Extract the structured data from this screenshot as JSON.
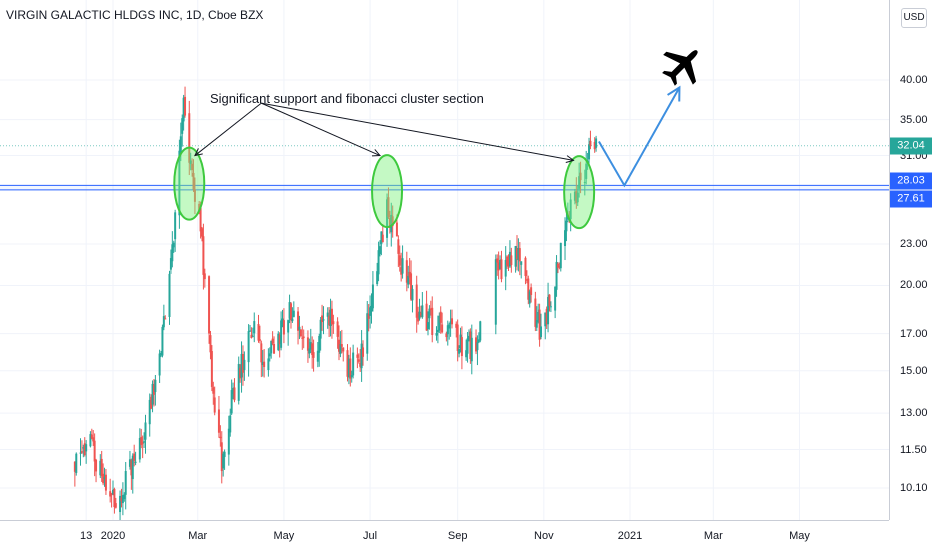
{
  "header": {
    "title": "VIRGIN GALACTIC HLDGS INC, 1D, Cboe BZX",
    "currency": "USD"
  },
  "colors": {
    "up": "#26a69a",
    "down": "#ef5350",
    "zone": "#2962ff",
    "circle_fill": "#7cf27c",
    "circle_stroke": "#3ec93e",
    "projection": "#3d8fe0",
    "price_badge": "#26a69a",
    "level_badge": "#2962ff"
  },
  "annotation": {
    "text": "Significant support and fibonacci cluster section"
  },
  "chart_data": {
    "type": "candlestick",
    "title": "VIRGIN GALACTIC HLDGS INC, 1D, Cboe BZX",
    "scale": "log",
    "ylim": [
      9.2,
      45
    ],
    "y_ticks": [
      "40.00",
      "35.00",
      "31.00",
      "23.00",
      "20.00",
      "17.00",
      "15.00",
      "13.00",
      "11.50",
      "10.10"
    ],
    "x_ticks": [
      "13",
      "2020",
      "Mar",
      "May",
      "Jul",
      "Sep",
      "Nov",
      "2021",
      "Mar",
      "May"
    ],
    "price_labels": [
      {
        "label": "32.04",
        "value": 32.04,
        "kind": "last"
      },
      {
        "label": "28.03",
        "value": 28.03,
        "kind": "level"
      },
      {
        "label": "27.61",
        "value": 27.61,
        "kind": "level"
      }
    ],
    "support_zone": [
      27.61,
      28.03
    ],
    "anchors": [
      {
        "x": "2019-12-05",
        "y": 10.9
      },
      {
        "x": "2019-12-16",
        "y": 11.6
      },
      {
        "x": "2020-01-02",
        "y": 9.6
      },
      {
        "x": "2020-01-20",
        "y": 11.5
      },
      {
        "x": "2020-02-03",
        "y": 15.5
      },
      {
        "x": "2020-02-12",
        "y": 22.5
      },
      {
        "x": "2020-02-20",
        "y": 37.0
      },
      {
        "x": "2020-02-25",
        "y": 30.0
      },
      {
        "x": "2020-03-03",
        "y": 24.0
      },
      {
        "x": "2020-03-12",
        "y": 14.0
      },
      {
        "x": "2020-03-18",
        "y": 11.0
      },
      {
        "x": "2020-03-26",
        "y": 14.0
      },
      {
        "x": "2020-04-10",
        "y": 17.5
      },
      {
        "x": "2020-04-17",
        "y": 15.0
      },
      {
        "x": "2020-05-05",
        "y": 18.5
      },
      {
        "x": "2020-05-20",
        "y": 16.0
      },
      {
        "x": "2020-06-02",
        "y": 18.0
      },
      {
        "x": "2020-06-15",
        "y": 15.0
      },
      {
        "x": "2020-06-25",
        "y": 16.0
      },
      {
        "x": "2020-07-05",
        "y": 21.0
      },
      {
        "x": "2020-07-13",
        "y": 26.0
      },
      {
        "x": "2020-07-22",
        "y": 22.0
      },
      {
        "x": "2020-08-05",
        "y": 18.0
      },
      {
        "x": "2020-08-20",
        "y": 17.5
      },
      {
        "x": "2020-09-03",
        "y": 16.5
      },
      {
        "x": "2020-09-15",
        "y": 16.0
      },
      {
        "x": "2020-09-22",
        "y": 20.5
      },
      {
        "x": "2020-10-05",
        "y": 21.5
      },
      {
        "x": "2020-10-12",
        "y": 23.0
      },
      {
        "x": "2020-10-20",
        "y": 20.0
      },
      {
        "x": "2020-10-30",
        "y": 17.0
      },
      {
        "x": "2020-11-10",
        "y": 21.0
      },
      {
        "x": "2020-11-17",
        "y": 25.0
      },
      {
        "x": "2020-11-25",
        "y": 28.0
      },
      {
        "x": "2020-12-01",
        "y": 30.0
      },
      {
        "x": "2020-12-04",
        "y": 33.5
      },
      {
        "x": "2020-12-08",
        "y": 32.0
      }
    ],
    "gaps": [
      [
        "2020-09-17",
        "2020-09-28"
      ]
    ],
    "support_circles": [
      {
        "x": "2020-02-24",
        "y": 28.2
      },
      {
        "x": "2020-07-13",
        "y": 27.5
      },
      {
        "x": "2020-11-26",
        "y": 27.4
      }
    ],
    "arrows_from": {
      "x": "2020-04-15",
      "y": 37.0
    },
    "arrow_targets": [
      {
        "x": "2020-02-28",
        "y": 31.0
      },
      {
        "x": "2020-07-08",
        "y": 31.0
      },
      {
        "x": "2020-11-22",
        "y": 30.5
      }
    ],
    "projection": [
      {
        "x": "2020-12-10",
        "y": 32.5
      },
      {
        "x": "2020-12-28",
        "y": 28.03
      },
      {
        "x": "2021-02-05",
        "y": 39.0
      }
    ],
    "plane_icon": {
      "x": "2021-02-07",
      "y": 42.0
    }
  }
}
